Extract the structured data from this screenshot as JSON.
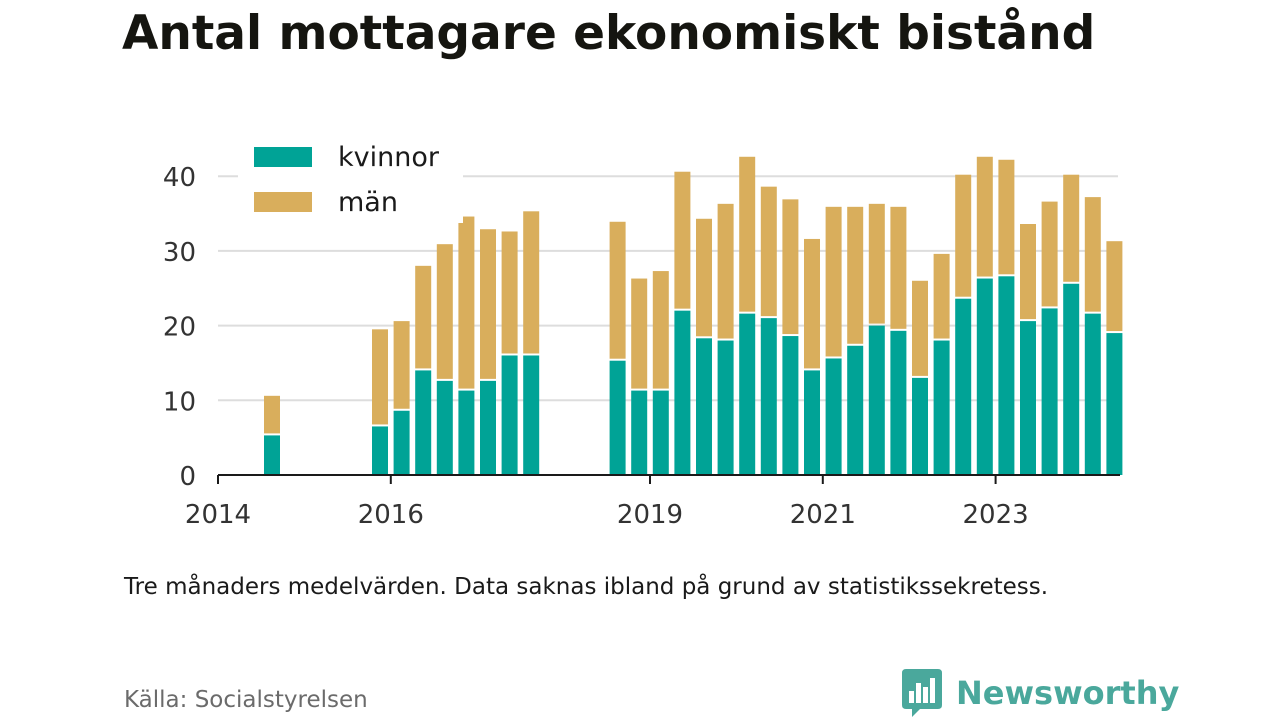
{
  "title": "Antal mottagare ekonomiskt bistånd",
  "note": "Tre månaders medelvärden. Data saknas ibland på grund av statistikssekretess.",
  "source": "Källa: Socialstyrelsen",
  "brand": {
    "name": "Newsworthy",
    "icon": "newsworthy-logo-icon",
    "color": "#4aa89c"
  },
  "colors": {
    "kvinnor": "#00a396",
    "man": "#d9ae5c",
    "axis": "#1a1a1a",
    "grid": "#dddddd",
    "tick_text": "#333333"
  },
  "chart_data": {
    "type": "bar",
    "stacked": true,
    "legend_position": "top-left",
    "grid": true,
    "ylim": [
      0,
      45
    ],
    "yticks": [
      0,
      10,
      20,
      30,
      40
    ],
    "x_tick_labels": [
      "2014",
      "2016",
      "2019",
      "2021",
      "2023"
    ],
    "x_range": [
      "2014-01",
      "2024-06"
    ],
    "categories": [
      "2014-Q3",
      "2015-Q4",
      "2016-Q1",
      "2016-Q2",
      "2016-Q3",
      "2016-Q4",
      "2017-Q1",
      "2017-Q2",
      "2017-Q3",
      "2018-Q3",
      "2018-Q4",
      "2019-Q1",
      "2019-Q2",
      "2019-Q3",
      "2019-Q4",
      "2020-Q1",
      "2020-Q2",
      "2020-Q3",
      "2020-Q4",
      "2021-Q1",
      "2021-Q2",
      "2021-Q3",
      "2021-Q4",
      "2022-Q1",
      "2022-Q2",
      "2022-Q3",
      "2022-Q4",
      "2023-Q1",
      "2023-Q2",
      "2023-Q3",
      "2023-Q4",
      "2024-Q1",
      "2024-Q2"
    ],
    "series": [
      {
        "name": "kvinnor",
        "values": [
          5.3,
          6.5,
          8.6,
          14.0,
          12.6,
          11.3,
          12.6,
          16.0,
          16.0,
          15.3,
          11.3,
          11.3,
          22.0,
          18.3,
          18.0,
          21.6,
          21.0,
          18.6,
          14.0,
          15.6,
          17.3,
          20.0,
          19.3,
          13.0,
          18.0,
          23.6,
          26.3,
          26.6,
          20.6,
          22.3,
          25.6,
          21.6,
          19.0
        ]
      },
      {
        "name": "män",
        "values": [
          5.3,
          13.0,
          12.0,
          14.0,
          18.3,
          23.3,
          20.3,
          16.6,
          19.3,
          18.6,
          15.0,
          16.0,
          18.6,
          16.0,
          18.3,
          21.0,
          17.6,
          18.3,
          17.6,
          20.3,
          18.6,
          16.3,
          16.6,
          13.0,
          11.6,
          16.6,
          16.3,
          15.6,
          13.0,
          14.3,
          14.6,
          15.6,
          12.3
        ]
      }
    ]
  }
}
